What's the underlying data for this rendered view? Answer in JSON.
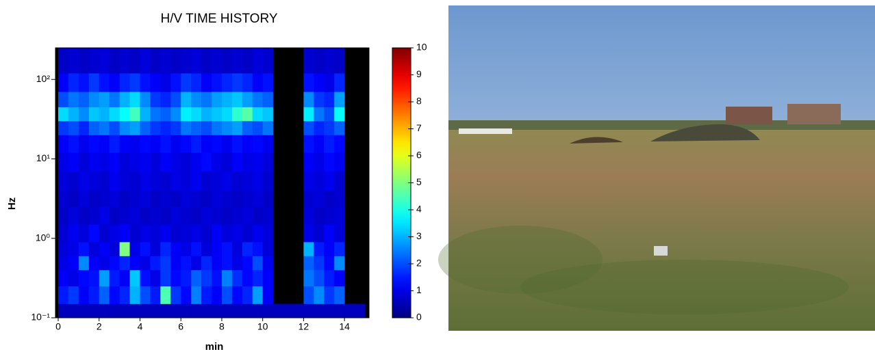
{
  "chart_data": {
    "type": "heatmap",
    "title": "H/V TIME HISTORY",
    "x_label": "min",
    "y_label": "Hz",
    "xlim": [
      0,
      15.2
    ],
    "xticks": [
      0,
      2,
      4,
      6,
      8,
      10,
      12,
      14
    ],
    "ylim": [
      0.1,
      250
    ],
    "log_y": true,
    "yticks": [
      {
        "value": 0.1,
        "label": "10⁻¹"
      },
      {
        "value": 1,
        "label": "10⁰"
      },
      {
        "value": 10,
        "label": "10¹"
      },
      {
        "value": 100,
        "label": "10²"
      }
    ],
    "colormap": "jet",
    "clim": [
      0,
      10
    ],
    "cticks": [
      0,
      1,
      2,
      3,
      4,
      5,
      6,
      7,
      8,
      9,
      10
    ],
    "x_bins": [
      0,
      0.5,
      1,
      1.5,
      2,
      2.5,
      3,
      3.5,
      4,
      4.5,
      5,
      5.5,
      6,
      6.5,
      7,
      7.5,
      8,
      8.5,
      9,
      9.5,
      10,
      10.5,
      11,
      11.5,
      12,
      12.5,
      13,
      13.5,
      14,
      14.5,
      15
    ],
    "y_bins": [
      0.1,
      0.15,
      0.25,
      0.4,
      0.6,
      0.9,
      1.5,
      2.5,
      4,
      7,
      12,
      20,
      30,
      45,
      70,
      120,
      250
    ],
    "values": [
      [
        0.6,
        0.6,
        0.6,
        0.6,
        0.6,
        0.6,
        0.6,
        0.6,
        0.6,
        0.6,
        0.6,
        0.6,
        0.6,
        0.6,
        0.6,
        0.6,
        0.6,
        0.6,
        0.6,
        0.6,
        0.6,
        0.6,
        0.6,
        0.6,
        0.6,
        0.6,
        0.6,
        0.6,
        0.6,
        0.6
      ],
      [
        1.5,
        1.8,
        1.2,
        1.5,
        2.2,
        1.3,
        1.6,
        3.0,
        2.0,
        1.5,
        4.5,
        1.8,
        1.3,
        2.5,
        1.5,
        1.2,
        2.0,
        1.3,
        1.6,
        2.8,
        1.2,
        null,
        null,
        null,
        2.0,
        2.6,
        1.8,
        2.2,
        null,
        null
      ],
      [
        1.2,
        1.0,
        1.3,
        1.4,
        2.8,
        1.5,
        1.2,
        3.2,
        1.4,
        1.0,
        1.8,
        1.3,
        1.5,
        2.2,
        1.8,
        1.4,
        2.5,
        1.7,
        1.3,
        1.6,
        1.2,
        null,
        null,
        null,
        2.4,
        2.0,
        1.5,
        1.2,
        null,
        null
      ],
      [
        1.0,
        1.2,
        2.6,
        1.2,
        1.0,
        1.3,
        1.6,
        1.2,
        1.0,
        1.5,
        1.8,
        1.2,
        1.4,
        1.0,
        1.6,
        1.2,
        1.4,
        1.0,
        1.3,
        2.0,
        1.1,
        null,
        null,
        null,
        2.2,
        1.8,
        1.3,
        2.6,
        null,
        null
      ],
      [
        0.9,
        1.0,
        1.4,
        0.9,
        1.2,
        0.9,
        5.0,
        1.0,
        1.4,
        0.9,
        1.6,
        1.2,
        1.0,
        1.4,
        0.9,
        1.2,
        1.4,
        0.9,
        1.6,
        1.4,
        0.9,
        null,
        null,
        null,
        3.0,
        1.5,
        1.2,
        1.6,
        null,
        null
      ],
      [
        0.8,
        1.1,
        0.9,
        1.3,
        0.8,
        1.0,
        1.2,
        0.8,
        1.0,
        0.9,
        1.1,
        0.8,
        0.9,
        1.0,
        0.8,
        1.2,
        0.9,
        1.0,
        0.8,
        1.1,
        0.9,
        null,
        null,
        null,
        1.0,
        0.8,
        1.2,
        0.9,
        null,
        null
      ],
      [
        0.7,
        0.9,
        0.7,
        0.8,
        1.0,
        0.7,
        0.8,
        0.9,
        0.7,
        0.8,
        0.7,
        0.9,
        0.8,
        0.7,
        0.9,
        0.8,
        0.7,
        0.8,
        0.9,
        0.7,
        0.8,
        null,
        null,
        null,
        0.9,
        0.7,
        0.8,
        0.9,
        null,
        null
      ],
      [
        0.8,
        0.7,
        0.9,
        0.7,
        0.8,
        0.9,
        0.7,
        0.8,
        0.9,
        0.7,
        0.8,
        0.7,
        0.9,
        0.8,
        0.7,
        0.9,
        0.8,
        0.7,
        0.8,
        0.9,
        0.7,
        null,
        null,
        null,
        0.8,
        0.9,
        0.7,
        0.8,
        null,
        null
      ],
      [
        0.9,
        0.8,
        1.0,
        0.9,
        0.8,
        1.1,
        0.9,
        0.8,
        1.0,
        0.9,
        0.8,
        1.0,
        0.9,
        1.1,
        0.8,
        0.9,
        1.0,
        0.8,
        0.9,
        1.0,
        0.8,
        null,
        null,
        null,
        1.0,
        0.9,
        1.1,
        0.8,
        null,
        null
      ],
      [
        1.0,
        1.2,
        0.9,
        1.1,
        1.0,
        1.2,
        0.9,
        1.0,
        1.1,
        0.9,
        1.2,
        1.0,
        0.9,
        1.1,
        1.3,
        1.0,
        0.9,
        1.2,
        1.0,
        1.1,
        0.9,
        null,
        null,
        null,
        1.2,
        1.0,
        1.3,
        1.1,
        null,
        null
      ],
      [
        1.2,
        1.4,
        1.1,
        1.3,
        1.2,
        1.5,
        1.2,
        1.1,
        1.3,
        1.2,
        1.4,
        1.1,
        1.3,
        1.5,
        1.2,
        1.3,
        1.1,
        1.4,
        1.2,
        1.3,
        1.1,
        null,
        null,
        null,
        1.4,
        1.2,
        1.5,
        1.3,
        null,
        null
      ],
      [
        1.8,
        2.0,
        1.6,
        2.2,
        2.4,
        2.0,
        2.6,
        2.8,
        2.2,
        1.8,
        1.6,
        1.8,
        2.4,
        2.2,
        2.0,
        2.4,
        2.6,
        2.8,
        2.2,
        2.0,
        2.4,
        null,
        null,
        null,
        2.0,
        1.6,
        1.8,
        2.2,
        null,
        null
      ],
      [
        3.4,
        3.0,
        2.6,
        3.2,
        3.0,
        3.4,
        3.8,
        4.4,
        3.0,
        2.4,
        2.2,
        2.6,
        3.6,
        3.4,
        3.0,
        3.2,
        3.4,
        4.2,
        4.6,
        3.4,
        3.2,
        null,
        null,
        null,
        3.6,
        2.4,
        2.0,
        3.8,
        null,
        null
      ],
      [
        2.0,
        2.4,
        2.2,
        2.6,
        2.8,
        2.4,
        3.0,
        3.4,
        2.6,
        1.8,
        1.6,
        2.0,
        3.0,
        2.6,
        2.4,
        2.8,
        3.0,
        3.2,
        2.8,
        2.4,
        2.2,
        null,
        null,
        null,
        2.6,
        1.8,
        1.6,
        2.8,
        null,
        null
      ],
      [
        1.2,
        1.6,
        1.4,
        1.8,
        1.4,
        1.2,
        1.6,
        1.8,
        1.4,
        1.2,
        1.0,
        1.4,
        1.8,
        1.6,
        1.2,
        1.4,
        1.6,
        1.8,
        1.6,
        1.2,
        1.4,
        null,
        null,
        null,
        1.4,
        1.2,
        1.0,
        1.6,
        null,
        null
      ],
      [
        0.7,
        0.8,
        0.7,
        0.8,
        0.9,
        0.7,
        0.8,
        0.7,
        0.9,
        0.7,
        0.8,
        0.7,
        0.8,
        0.9,
        0.7,
        0.8,
        0.7,
        0.8,
        0.7,
        0.9,
        0.8,
        null,
        null,
        null,
        0.8,
        0.7,
        0.8,
        0.7,
        null,
        null
      ]
    ]
  }
}
